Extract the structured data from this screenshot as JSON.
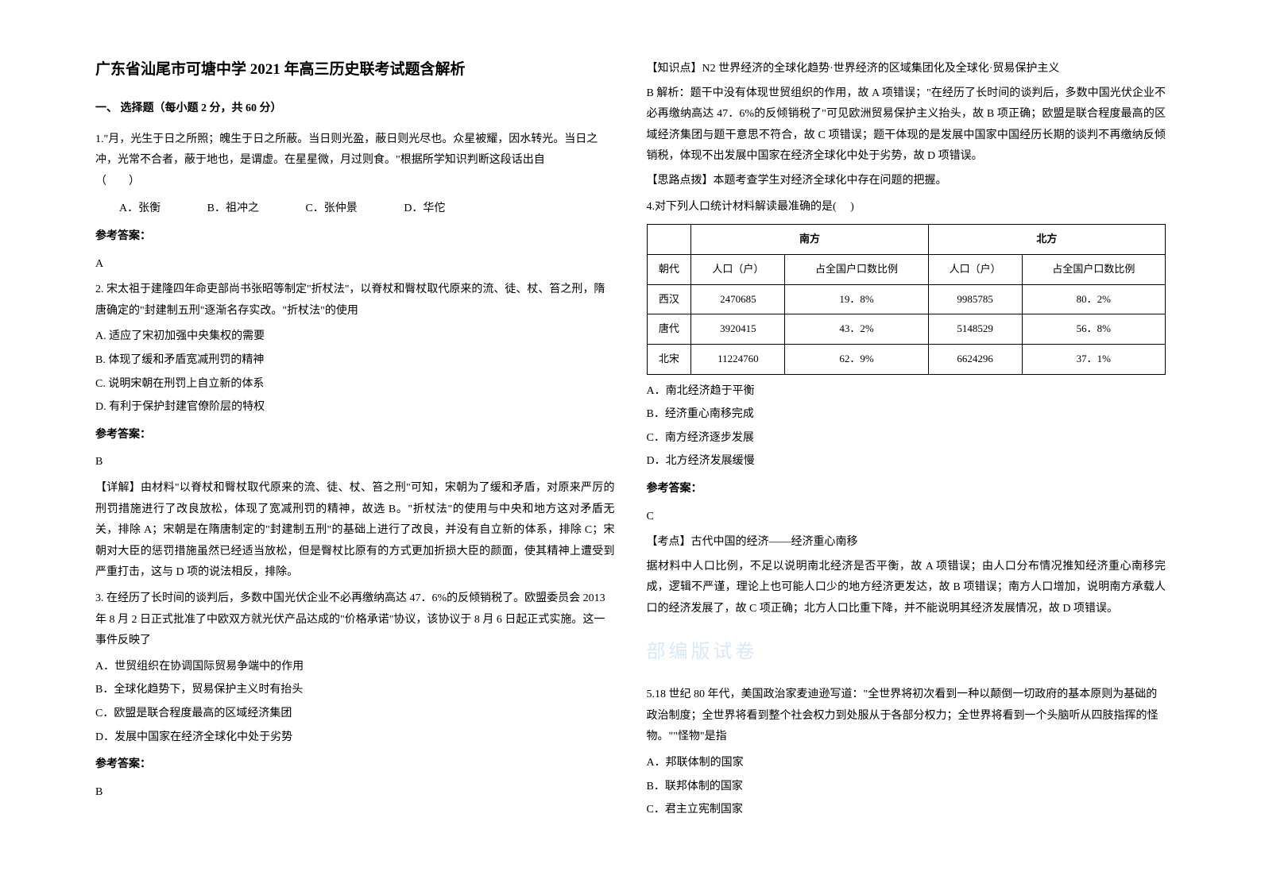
{
  "title": "广东省汕尾市可塘中学 2021 年高三历史联考试题含解析",
  "section1": "一、 选择题（每小题 2 分，共 60 分）",
  "q1": {
    "stem": "1.\"月，光生于日之所照；魄生于日之所蔽。当日则光盈，蔽日则光尽也。众星被耀，因水转光。当日之冲，光常不合者，蔽于地也，是谓虚。在星星微，月过则食。\"根据所学知识判断这段话出自　　　　（　　）",
    "A": "A．张衡",
    "B": "B．祖冲之",
    "C": "C．张仲景",
    "D": "D．华佗",
    "ansLabel": "参考答案：",
    "ans": "A"
  },
  "q2": {
    "stem": "2. 宋太祖于建隆四年命吏部尚书张昭等制定\"折杖法\"，以脊杖和臀杖取代原来的流、徒、杖、笞之刑，隋唐确定的\"封建制五刑\"逐渐名存实改。\"折杖法\"的使用",
    "A": "A. 适应了宋初加强中央集权的需要",
    "B": "B. 体现了缓和矛盾宽减刑罚的精神",
    "C": "C. 说明宋朝在刑罚上自立新的体系",
    "D": "D. 有利于保护封建官僚阶层的特权",
    "ansLabel": "参考答案：",
    "ans": "B",
    "explain": "【详解】由材料\"以脊杖和臀杖取代原来的流、徒、杖、笞之刑\"可知，宋朝为了缓和矛盾，对原来严厉的刑罚措施进行了改良放松，体现了宽减刑罚的精神，故选 B。\"折杖法\"的使用与中央和地方这对矛盾无关，排除 A；宋朝是在隋唐制定的\"封建制五刑\"的基础上进行了改良，并没有自立新的体系，排除 C；宋朝对大臣的惩罚措施虽然已经适当放松，但是臀杖比原有的方式更加折损大臣的颜面，使其精神上遭受到严重打击，这与 D 项的说法相反，排除。"
  },
  "q3": {
    "stem": "3. 在经历了长时间的谈判后，多数中国光伏企业不必再缴纳高达 47．6%的反倾销税了。欧盟委员会 2013 年 8 月 2 日正式批准了中欧双方就光伏产品达成的\"价格承诺\"协议，该协议于 8 月 6 日起正式实施。这一事件反映了",
    "A": "A．世贸组织在协调国际贸易争端中的作用",
    "B": "B．全球化趋势下，贸易保护主义时有抬头",
    "C": "C．欧盟是联合程度最高的区域经济集团",
    "D": "D．发展中国家在经济全球化中处于劣势",
    "ansLabel": "参考答案：",
    "ans": "B",
    "kp": "【知识点】N2 世界经济的全球化趋势·世界经济的区域集团化及全球化·贸易保护主义",
    "ex1": "B 解析：题干中没有体现世贸组织的作用，故 A 项错误；\"在经历了长时间的谈判后，多数中国光伏企业不必再缴纳高达 47．6%的反倾销税了\"可见欧洲贸易保护主义抬头，故 B 项正确；欧盟是联合程度最高的区域经济集团与题干意思不符合，故 C 项错误；题干体现的是发展中国家中国经历长期的谈判不再缴纳反倾销税，体现不出发展中国家在经济全球化中处于劣势，故 D 项错误。",
    "ex2": "【思路点拨】本题考查学生对经济全球化中存在问题的把握。"
  },
  "q4": {
    "stem": "4.对下列人口统计材料解读最准确的是(　 )",
    "table": {
      "headers": [
        "",
        "南方",
        "北方"
      ],
      "sub": [
        "朝代",
        "人口（户）",
        "占全国户口数比例",
        "人口（户）",
        "占全国户口数比例"
      ],
      "rows": [
        [
          "西汉",
          "2470685",
          "19．8%",
          "9985785",
          "80．2%"
        ],
        [
          "唐代",
          "3920415",
          "43．2%",
          "5148529",
          "56．8%"
        ],
        [
          "北宋",
          "11224760",
          "62．9%",
          "6624296",
          "37．1%"
        ]
      ]
    },
    "A": "A．南北经济趋于平衡",
    "B": "B．经济重心南移完成",
    "C": "C．南方经济逐步发展",
    "D": "D．北方经济发展缓慢",
    "ansLabel": "参考答案：",
    "ans": "C",
    "kp": "【考点】古代中国的经济——经济重心南移",
    "explain": "据材料中人口比例，不足以说明南北经济是否平衡，故 A 项错误；由人口分布情况推知经济重心南移完成，逻辑不严谨，理论上也可能人口少的地方经济更发达，故 B 项错误；南方人口增加，说明南方承载人口的经济发展了，故 C 项正确；北方人口比重下降，并不能说明其经济发展情况，故 D 项错误。"
  },
  "watermark": "部编版试卷",
  "q5": {
    "stem": "5.18 世纪 80 年代，美国政治家麦迪逊写道：\"全世界将初次看到一种以颠倒一切政府的基本原则为基础的政治制度；全世界将看到整个社会权力到处服从于各部分权力；全世界将看到一个头脑听从四肢指挥的怪物。\"\"怪物\"是指",
    "A": "A．邦联体制的国家",
    "B": "B．联邦体制的国家",
    "C": "C．君主立宪制国家"
  }
}
